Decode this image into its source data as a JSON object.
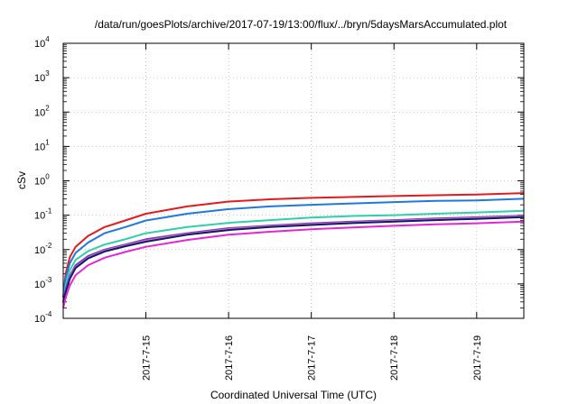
{
  "chart_data": {
    "type": "line",
    "title": "/data/run/goesPlots/archive/2017-07-19/13:00/flux/../bryn/5daysMarsAccumulated.plot",
    "xlabel": "Coordinated Universal Time (UTC)",
    "ylabel": "cSv",
    "y_scale": "log",
    "ylim": [
      0.0001,
      10000
    ],
    "xlim": [
      0,
      5.57
    ],
    "x_ticks": [
      {
        "label": "2017-7-15",
        "value": 1
      },
      {
        "label": "2017-7-16",
        "value": 2
      },
      {
        "label": "2017-7-17",
        "value": 3
      },
      {
        "label": "2017-7-18",
        "value": 4
      },
      {
        "label": "2017-7-19",
        "value": 5
      }
    ],
    "y_ticks": [
      {
        "base": "10",
        "exp": "-4",
        "value": 0.0001
      },
      {
        "base": "10",
        "exp": "-3",
        "value": 0.001
      },
      {
        "base": "10",
        "exp": "-2",
        "value": 0.01
      },
      {
        "base": "10",
        "exp": "-1",
        "value": 0.1
      },
      {
        "base": "10",
        "exp": "0",
        "value": 1
      },
      {
        "base": "10",
        "exp": "1",
        "value": 10
      },
      {
        "base": "10",
        "exp": "2",
        "value": 100
      },
      {
        "base": "10",
        "exp": "3",
        "value": 1000
      },
      {
        "base": "10",
        "exp": "4",
        "value": 10000
      }
    ],
    "grid": true,
    "legend": "none",
    "series": [
      {
        "color": "#e41a1c",
        "points": [
          [
            0,
            0.0004
          ],
          [
            0.03,
            0.002
          ],
          [
            0.08,
            0.006
          ],
          [
            0.15,
            0.012
          ],
          [
            0.3,
            0.025
          ],
          [
            0.5,
            0.045
          ],
          [
            0.75,
            0.07
          ],
          [
            1,
            0.11
          ],
          [
            1.5,
            0.18
          ],
          [
            2,
            0.25
          ],
          [
            2.5,
            0.29
          ],
          [
            3,
            0.32
          ],
          [
            3.5,
            0.34
          ],
          [
            4,
            0.36
          ],
          [
            4.5,
            0.38
          ],
          [
            5,
            0.4
          ],
          [
            5.57,
            0.44
          ]
        ]
      },
      {
        "color": "#1f78e0",
        "points": [
          [
            0,
            0.0004
          ],
          [
            0.03,
            0.0015
          ],
          [
            0.08,
            0.004
          ],
          [
            0.15,
            0.008
          ],
          [
            0.3,
            0.016
          ],
          [
            0.5,
            0.03
          ],
          [
            0.75,
            0.045
          ],
          [
            1,
            0.07
          ],
          [
            1.5,
            0.11
          ],
          [
            2,
            0.15
          ],
          [
            2.5,
            0.18
          ],
          [
            3,
            0.2
          ],
          [
            3.5,
            0.22
          ],
          [
            4,
            0.24
          ],
          [
            4.5,
            0.26
          ],
          [
            5,
            0.27
          ],
          [
            5.57,
            0.3
          ]
        ]
      },
      {
        "color": "#2ecfaa",
        "points": [
          [
            0,
            0.0003
          ],
          [
            0.03,
            0.0009
          ],
          [
            0.08,
            0.0025
          ],
          [
            0.15,
            0.005
          ],
          [
            0.3,
            0.009
          ],
          [
            0.5,
            0.014
          ],
          [
            0.75,
            0.02
          ],
          [
            1,
            0.03
          ],
          [
            1.5,
            0.045
          ],
          [
            2,
            0.06
          ],
          [
            2.5,
            0.072
          ],
          [
            3,
            0.085
          ],
          [
            3.5,
            0.095
          ],
          [
            4,
            0.1
          ],
          [
            4.5,
            0.11
          ],
          [
            5,
            0.12
          ],
          [
            5.57,
            0.135
          ]
        ]
      },
      {
        "color": "#7a3dbf",
        "points": [
          [
            0,
            0.0003
          ],
          [
            0.03,
            0.0007
          ],
          [
            0.08,
            0.0017
          ],
          [
            0.15,
            0.0035
          ],
          [
            0.3,
            0.0065
          ],
          [
            0.5,
            0.01
          ],
          [
            0.75,
            0.014
          ],
          [
            1,
            0.02
          ],
          [
            1.5,
            0.03
          ],
          [
            2,
            0.042
          ],
          [
            2.5,
            0.05
          ],
          [
            3,
            0.058
          ],
          [
            3.5,
            0.065
          ],
          [
            4,
            0.072
          ],
          [
            4.5,
            0.08
          ],
          [
            5,
            0.087
          ],
          [
            5.57,
            0.097
          ]
        ]
      },
      {
        "color": "#e57ab0",
        "points": [
          [
            0,
            0.0003
          ],
          [
            0.03,
            0.0006
          ],
          [
            0.08,
            0.0015
          ],
          [
            0.15,
            0.003
          ],
          [
            0.3,
            0.0058
          ],
          [
            0.5,
            0.0092
          ],
          [
            0.75,
            0.013
          ],
          [
            1,
            0.018
          ],
          [
            1.5,
            0.028
          ],
          [
            2,
            0.039
          ],
          [
            2.5,
            0.047
          ],
          [
            3,
            0.054
          ],
          [
            3.5,
            0.061
          ],
          [
            4,
            0.068
          ],
          [
            4.5,
            0.075
          ],
          [
            5,
            0.082
          ],
          [
            5.57,
            0.092
          ]
        ]
      },
      {
        "color": "#101870",
        "points": [
          [
            0,
            0.00028
          ],
          [
            0.03,
            0.00058
          ],
          [
            0.08,
            0.0014
          ],
          [
            0.15,
            0.0029
          ],
          [
            0.3,
            0.0055
          ],
          [
            0.5,
            0.0088
          ],
          [
            0.75,
            0.0125
          ],
          [
            1,
            0.017
          ],
          [
            1.5,
            0.027
          ],
          [
            2,
            0.037
          ],
          [
            2.5,
            0.045
          ],
          [
            3,
            0.052
          ],
          [
            3.5,
            0.059
          ],
          [
            4,
            0.065
          ],
          [
            4.5,
            0.072
          ],
          [
            5,
            0.078
          ],
          [
            5.57,
            0.088
          ]
        ]
      },
      {
        "color": "#e626d6",
        "points": [
          [
            0,
            0.0002
          ],
          [
            0.03,
            0.0004
          ],
          [
            0.08,
            0.0009
          ],
          [
            0.15,
            0.0018
          ],
          [
            0.3,
            0.0035
          ],
          [
            0.5,
            0.0058
          ],
          [
            0.75,
            0.0085
          ],
          [
            1,
            0.012
          ],
          [
            1.5,
            0.019
          ],
          [
            2,
            0.027
          ],
          [
            2.5,
            0.033
          ],
          [
            3,
            0.039
          ],
          [
            3.5,
            0.044
          ],
          [
            4,
            0.049
          ],
          [
            4.5,
            0.054
          ],
          [
            5,
            0.058
          ],
          [
            5.57,
            0.065
          ]
        ]
      }
    ]
  }
}
